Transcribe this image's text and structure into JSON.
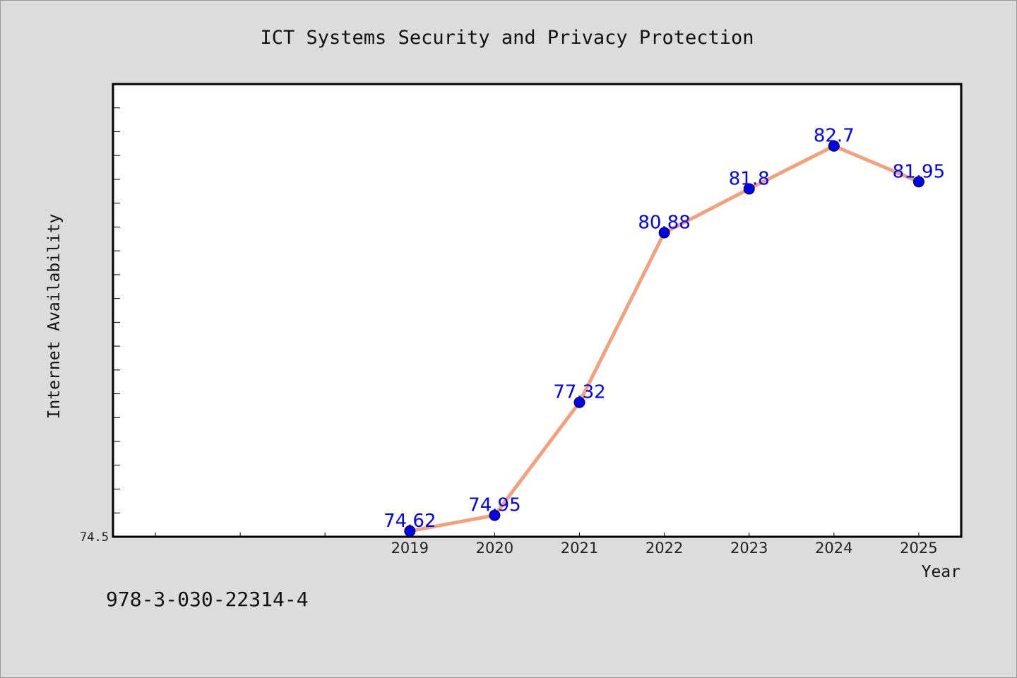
{
  "chart_data": {
    "type": "line",
    "title": "ICT Systems Security and Privacy Protection",
    "xlabel": "Year",
    "ylabel": "Internet Availability",
    "x": [
      "2019",
      "2020",
      "2021",
      "2022",
      "2023",
      "2024",
      "2025"
    ],
    "y": [
      74.62,
      74.95,
      77.32,
      80.88,
      81.8,
      82.7,
      81.95
    ],
    "data_labels": [
      "74.62",
      "74.95",
      "77.32",
      "80.88",
      "81.8",
      "82.7",
      "81.95"
    ],
    "ytick_labels": [
      "74.5"
    ],
    "ylim": [
      74.5,
      84.0
    ],
    "x_index_range": [
      -3,
      7
    ],
    "grid": false,
    "line_color": "#f4a07c",
    "marker_color": "#0000ee",
    "label_color": "#0000ee"
  },
  "footer": {
    "code": "978-3-030-22314-4"
  }
}
